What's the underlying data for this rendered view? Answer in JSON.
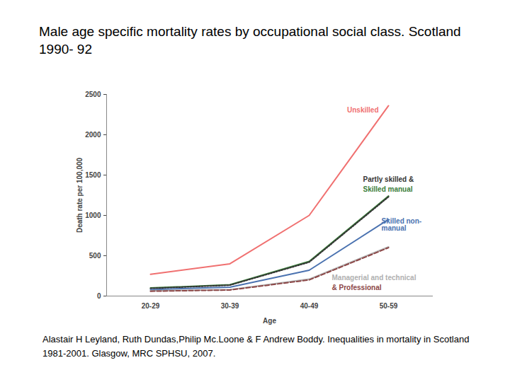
{
  "chart_data": {
    "type": "line",
    "title": "Male age specific mortality rates by occupational social class. Scotland 1990- 92",
    "x_label": "Age",
    "y_label": "Death rate per 100,000",
    "categories": [
      "20-29",
      "30-39",
      "40-49",
      "50-59"
    ],
    "series": [
      {
        "name": "Unskilled",
        "color": "#f07070",
        "line_style": "solid",
        "values": [
          270,
          400,
          1000,
          2360
        ]
      },
      {
        "name": "Skilled manual",
        "color": "#3a7d3a",
        "line_style": "solid",
        "values": [
          100,
          140,
          430,
          1240
        ]
      },
      {
        "name": "Partly skilled &",
        "color": "#333333",
        "line_style": "dotted",
        "values": [
          95,
          135,
          420,
          1230
        ]
      },
      {
        "name": "Skilled non-manual",
        "color": "#4a72b0",
        "line_style": "solid",
        "values": [
          80,
          110,
          320,
          950
        ]
      },
      {
        "name": "Managerial and technical",
        "color": "#b0b0b0",
        "line_style": "solid",
        "values": [
          65,
          80,
          210,
          610
        ]
      },
      {
        "name": "& Professional",
        "color": "#8c4646",
        "line_style": "dashed",
        "values": [
          60,
          75,
          200,
          600
        ]
      }
    ],
    "ylim": [
      0,
      2500
    ],
    "yticks": [
      0,
      500,
      1000,
      1500,
      2000,
      2500
    ],
    "caption": "Alastair H Leyland, Ruth Dundas,Philip Mc.Loone & F Andrew Boddy. Inequalities in mortality in Scotland 1981-2001. Glasgow, MRC SPHSU, 2007."
  }
}
